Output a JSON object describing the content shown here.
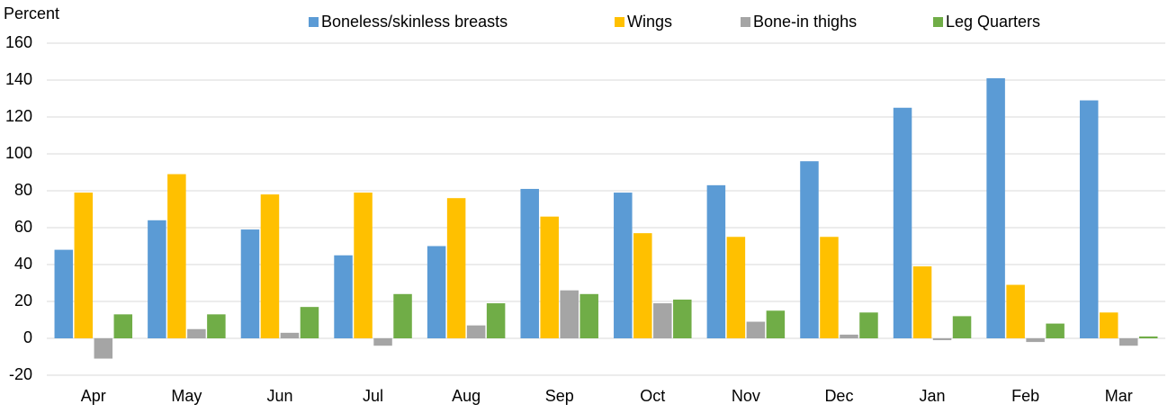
{
  "chart_data": {
    "type": "bar",
    "y_label": "Percent",
    "categories": [
      "Apr",
      "May",
      "Jun",
      "Jul",
      "Aug",
      "Sep",
      "Oct",
      "Nov",
      "Dec",
      "Jan",
      "Feb",
      "Mar"
    ],
    "series": [
      {
        "name": "Boneless/skinless breasts",
        "color": "#5b9bd5",
        "values": [
          48,
          64,
          59,
          45,
          50,
          81,
          79,
          83,
          96,
          125,
          141,
          129
        ]
      },
      {
        "name": "Wings",
        "color": "#ffc000",
        "values": [
          79,
          89,
          78,
          79,
          76,
          66,
          57,
          55,
          55,
          39,
          29,
          14
        ]
      },
      {
        "name": "Bone-in thighs",
        "color": "#a5a5a5",
        "values": [
          -11,
          5,
          3,
          -4,
          7,
          26,
          19,
          9,
          2,
          -1,
          -2,
          -4
        ]
      },
      {
        "name": "Leg Quarters",
        "color": "#70ad47",
        "values": [
          13,
          13,
          17,
          24,
          19,
          24,
          21,
          15,
          14,
          12,
          8,
          1
        ]
      }
    ],
    "ylim": [
      -20,
      160
    ],
    "yticks": [
      -20,
      0,
      20,
      40,
      60,
      80,
      100,
      120,
      140,
      160
    ],
    "grid": true
  }
}
